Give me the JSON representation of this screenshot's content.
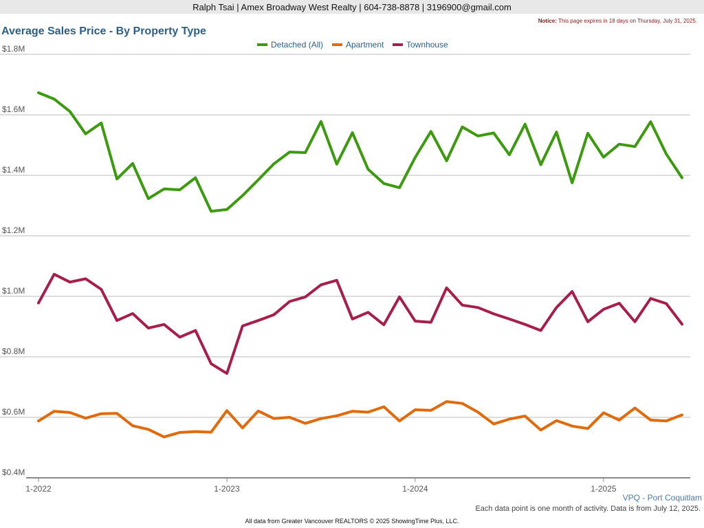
{
  "header": {
    "agent_line": "Ralph Tsai | Amex Broadway West Realty | 604-738-8878 | 3196900@gmail.com",
    "notice_label": "Notice:",
    "notice_text": "This page expires in 18 days on Thursday, July 31, 2025."
  },
  "footer": {
    "region": "VPQ - Port Coquitlam",
    "note": "Each data point is one month of activity. Data is from July 12, 2025.",
    "credit": "All data from Greater Vancouver REALTORS © 2025 ShowingTime Plus, LLC."
  },
  "chart_data": {
    "type": "line",
    "title": "Average Sales Price - By Property Type",
    "xlabel": "",
    "ylabel": "",
    "ylim": [
      400000,
      1800000
    ],
    "y_ticks": [
      400000,
      600000,
      800000,
      1000000,
      1200000,
      1400000,
      1600000,
      1800000
    ],
    "y_tick_labels": [
      "$0.4M",
      "$0.6M",
      "$0.8M",
      "$1.0M",
      "$1.2M",
      "$1.4M",
      "$1.6M",
      "$1.8M"
    ],
    "x": [
      "1-2022",
      "2-2022",
      "3-2022",
      "4-2022",
      "5-2022",
      "6-2022",
      "7-2022",
      "8-2022",
      "9-2022",
      "10-2022",
      "11-2022",
      "12-2022",
      "1-2023",
      "2-2023",
      "3-2023",
      "4-2023",
      "5-2023",
      "6-2023",
      "7-2023",
      "8-2023",
      "9-2023",
      "10-2023",
      "11-2023",
      "12-2023",
      "1-2024",
      "2-2024",
      "3-2024",
      "4-2024",
      "5-2024",
      "6-2024",
      "7-2024",
      "8-2024",
      "9-2024",
      "10-2024",
      "11-2024",
      "12-2024",
      "1-2025",
      "2-2025",
      "3-2025",
      "4-2025",
      "5-2025",
      "6-2025"
    ],
    "x_tick_labels": [
      "1-2022",
      "1-2023",
      "1-2024",
      "1-2025"
    ],
    "grid": true,
    "legend": "top-center",
    "series": [
      {
        "name": "Detached (All)",
        "color": "#3c9a0e",
        "values": [
          1673000,
          1652000,
          1611000,
          1537000,
          1573000,
          1388000,
          1439000,
          1323000,
          1355000,
          1352000,
          1392000,
          1281000,
          1287000,
          1333000,
          1385000,
          1438000,
          1477000,
          1475000,
          1578000,
          1437000,
          1541000,
          1420000,
          1373000,
          1359000,
          1459000,
          1545000,
          1448000,
          1560000,
          1530000,
          1540000,
          1468000,
          1569000,
          1435000,
          1543000,
          1375000,
          1539000,
          1460000,
          1503000,
          1495000,
          1577000,
          1470000,
          1392000
        ]
      },
      {
        "name": "Apartment",
        "color": "#e06a0c",
        "values": [
          588000,
          620000,
          616000,
          597000,
          612000,
          613000,
          572000,
          560000,
          535000,
          550000,
          553000,
          551000,
          622000,
          565000,
          621000,
          596000,
          600000,
          580000,
          596000,
          605000,
          620000,
          617000,
          635000,
          588000,
          625000,
          623000,
          652000,
          646000,
          617000,
          578000,
          594000,
          604000,
          558000,
          589000,
          571000,
          563000,
          615000,
          591000,
          631000,
          591000,
          588000,
          608000
        ]
      },
      {
        "name": "Townhouse",
        "color": "#a81e4a",
        "values": [
          978000,
          1073000,
          1047000,
          1058000,
          1023000,
          920000,
          943000,
          895000,
          907000,
          865000,
          887000,
          777000,
          745000,
          902000,
          920000,
          939000,
          983000,
          998000,
          1038000,
          1053000,
          925000,
          947000,
          906000,
          998000,
          918000,
          914000,
          1028000,
          971000,
          963000,
          942000,
          925000,
          907000,
          887000,
          963000,
          1016000,
          916000,
          957000,
          977000,
          916000,
          993000,
          976000,
          908000
        ]
      }
    ]
  }
}
